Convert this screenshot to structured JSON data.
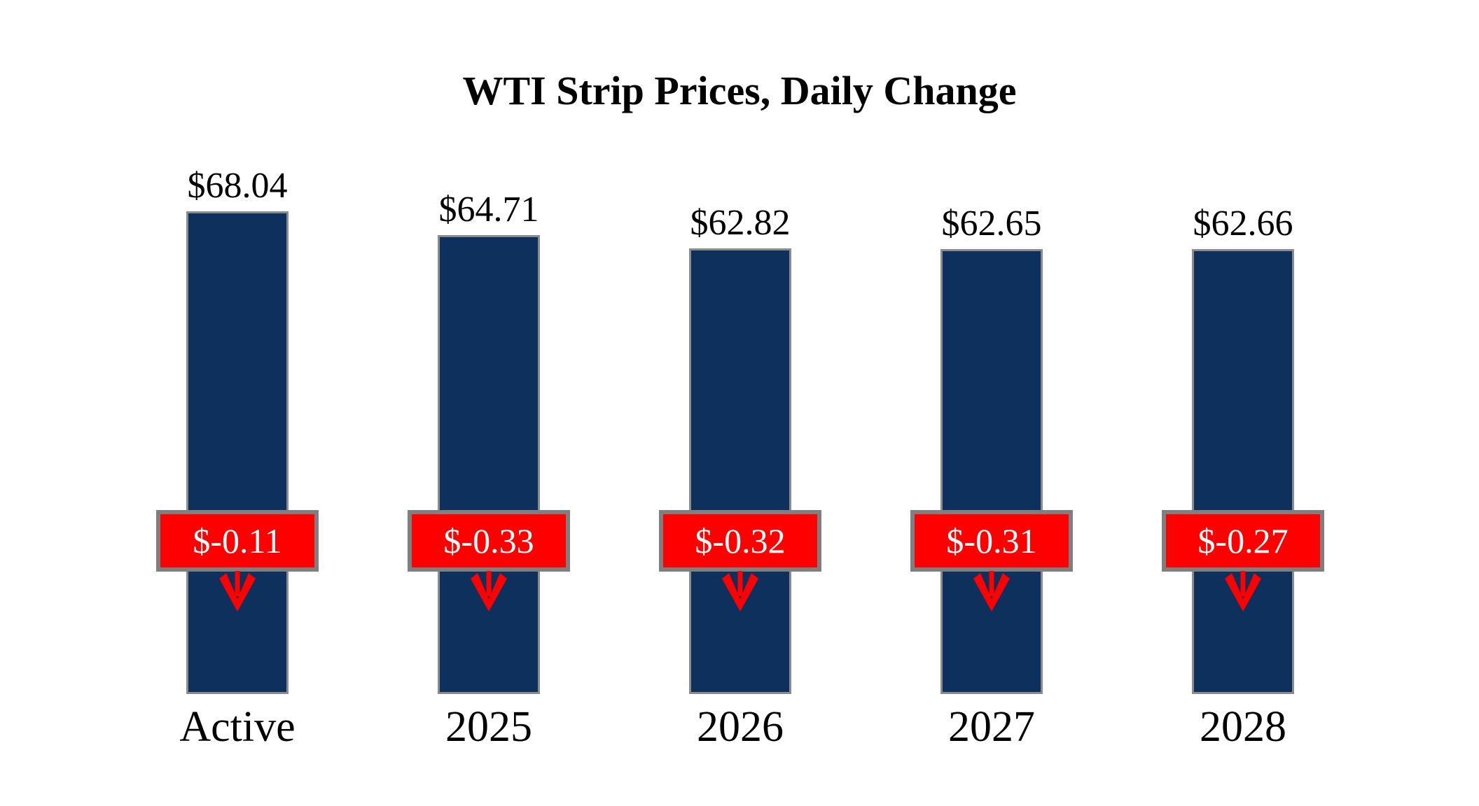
{
  "chart_data": {
    "type": "bar",
    "title": "WTI Strip Prices, Daily Change",
    "categories": [
      "Active",
      "2025",
      "2026",
      "2027",
      "2028"
    ],
    "series": [
      {
        "name": "strip_price",
        "values": [
          68.04,
          64.71,
          62.82,
          62.65,
          62.66
        ],
        "labels": [
          "$68.04",
          "$64.71",
          "$62.82",
          "$62.65",
          "$62.66"
        ]
      },
      {
        "name": "daily_change",
        "values": [
          -0.11,
          -0.33,
          -0.32,
          -0.31,
          -0.27
        ],
        "labels": [
          "$-0.11",
          "$-0.33",
          "$-0.32",
          "$-0.31",
          "$-0.27"
        ]
      }
    ],
    "ylim": [
      0,
      70
    ],
    "grid": false,
    "legend": false,
    "axes_visible": false,
    "colors": {
      "bar_fill": "#0D305C",
      "bar_border": "#8C8C8C",
      "change_fill": "#FF0000",
      "change_border": "#7F7F7F",
      "change_text": "#FFFFFF",
      "arrow": "#FF0000",
      "text": "#000000"
    }
  }
}
